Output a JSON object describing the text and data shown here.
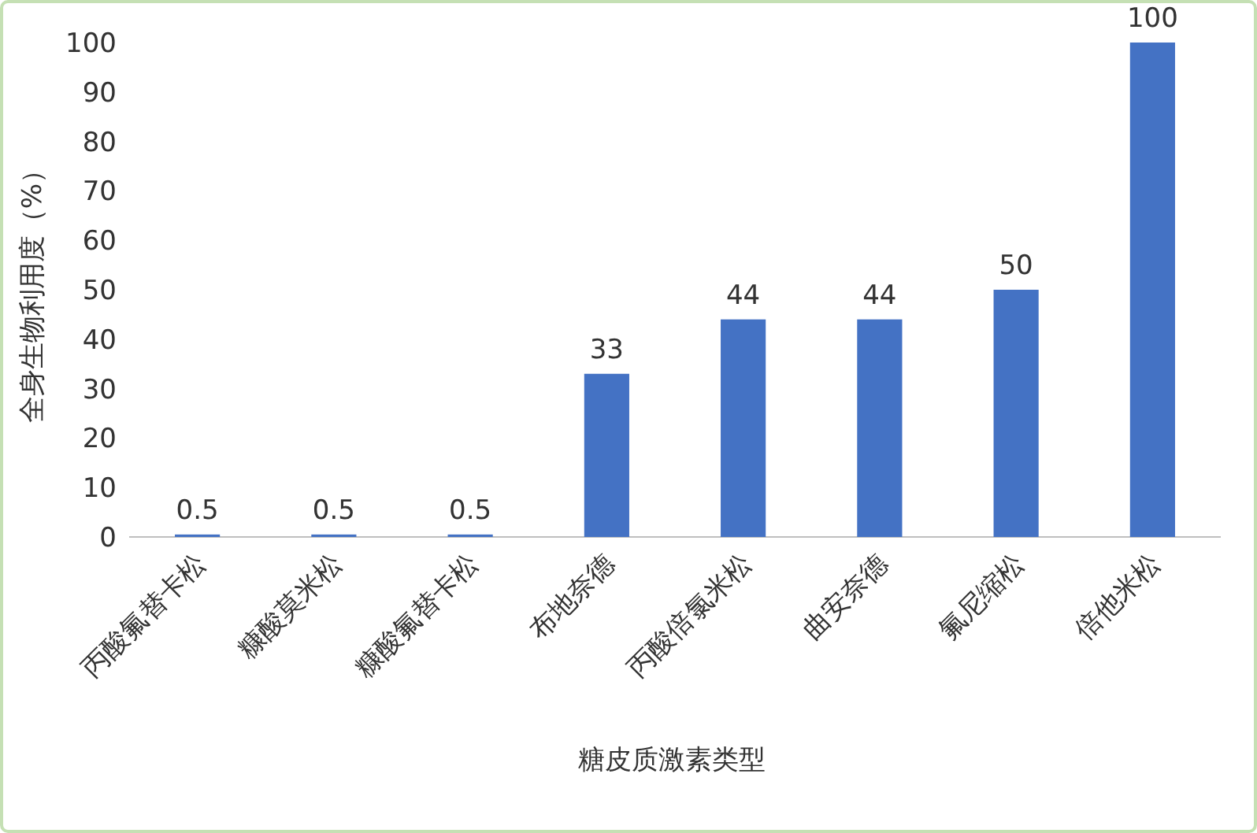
{
  "chart_data": {
    "type": "bar",
    "categories": [
      "丙酸氟替卡松",
      "糠酸莫米松",
      "糠酸氟替卡松",
      "布地奈德",
      "丙酸倍氯米松",
      "曲安奈德",
      "氟尼缩松",
      "倍他米松"
    ],
    "values": [
      0.5,
      0.5,
      0.5,
      33,
      44,
      44,
      50,
      100
    ],
    "color": "#4472c4",
    "xlabel": "糖皮质激素类型",
    "ylabel": "全身生物利用度（%）",
    "ylim": [
      0,
      100
    ],
    "yticks": [
      0,
      10,
      20,
      30,
      40,
      50,
      60,
      70,
      80,
      90,
      100
    ],
    "data_labels": true
  }
}
